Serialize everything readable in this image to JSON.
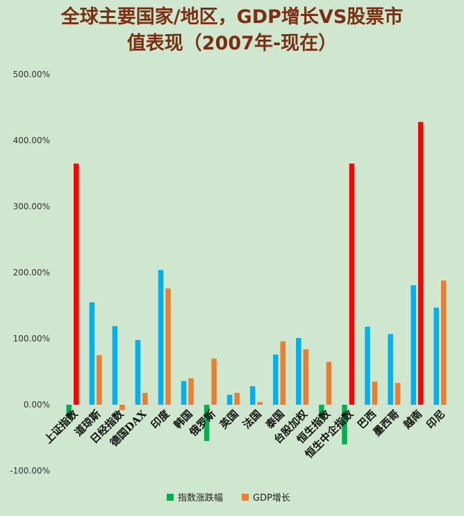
{
  "chart_data": {
    "type": "bar",
    "title_line1": "全球主要国家/地区，GDP增长VS股票市",
    "title_line2": "值表现（2007年-现在）",
    "categories": [
      "上证指数",
      "道琼斯",
      "日经指数",
      "德国DAX",
      "印度",
      "韩国",
      "俄罗斯",
      "英国",
      "法国",
      "泰国",
      "台股加权",
      "恒生指数",
      "恒生中企指数",
      "巴西",
      "墨西哥",
      "越南",
      "印尼"
    ],
    "y_ticks": [
      "-100.00%",
      "0.00%",
      "100.00%",
      "200.00%",
      "300.00%",
      "400.00%",
      "500.00%"
    ],
    "ylim": [
      -100,
      500
    ],
    "series": [
      {
        "name": "指数涨跌幅",
        "color": "#00b050",
        "values": [
          -20,
          155,
          119,
          98,
          204,
          36,
          -55,
          15,
          28,
          76,
          101,
          -20,
          -60,
          118,
          107,
          181,
          147
        ]
      },
      {
        "name": "GDP增长",
        "color": "#ed7d31",
        "values": [
          365,
          75,
          -8,
          18,
          176,
          40,
          70,
          18,
          4,
          96,
          84,
          65,
          365,
          35,
          33,
          428,
          188
        ]
      }
    ],
    "colors": {
      "up": "#00b0f0",
      "down": "#00b050",
      "highlight": "#ff0000",
      "gdp": "#ed7d31"
    },
    "highlight_indices": [
      0,
      12,
      15
    ],
    "legend_position": "bottom"
  }
}
